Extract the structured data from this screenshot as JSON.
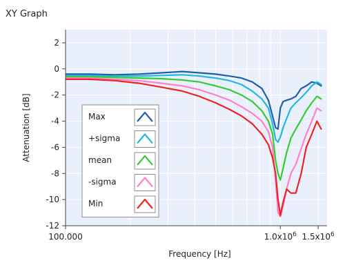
{
  "window": {
    "title": "XY Graph"
  },
  "colors": {
    "plot_background": "#eaf0fb",
    "grid": "#ffffff",
    "axis": "#444444",
    "legend_background": "#ffffff",
    "legend_border": "#8c8c8c"
  },
  "chart_data": {
    "type": "line",
    "title": "XY Graph",
    "xlabel": "Frequency [Hz]",
    "ylabel": "Attenuation [dB]",
    "x_scale": "log",
    "xlim": [
      100000,
      1650000
    ],
    "ylim": [
      -12,
      3
    ],
    "y_ticks": [
      2,
      0,
      -2,
      -4,
      -6,
      -8,
      -10,
      -12
    ],
    "y_tick_labels": [
      "2",
      "0",
      "-2",
      "-4",
      "-6",
      "-8",
      "-10",
      "-12"
    ],
    "x_ticks": [
      100000,
      1000000,
      1500000
    ],
    "x_tick_labels": [
      "100.000",
      "1.0x10^6",
      "1.5x10^6"
    ],
    "grid": true,
    "legend_position": "lower-left",
    "series": [
      {
        "name": "Max",
        "color": "#1f5ea8",
        "x": [
          100000,
          130000,
          170000,
          220000,
          280000,
          350000,
          420000,
          500000,
          580000,
          660000,
          740000,
          820000,
          880000,
          920000,
          950000,
          975000,
          1000000,
          1030000,
          1070000,
          1120000,
          1180000,
          1250000,
          1320000,
          1400000,
          1480000,
          1550000
        ],
        "y": [
          -0.4,
          -0.4,
          -0.45,
          -0.4,
          -0.3,
          -0.2,
          -0.3,
          -0.4,
          -0.55,
          -0.7,
          -1.0,
          -1.5,
          -2.4,
          -3.6,
          -4.5,
          -4.6,
          -3.0,
          -2.5,
          -2.4,
          -2.3,
          -2.1,
          -1.5,
          -1.3,
          -1.0,
          -1.1,
          -1.3
        ]
      },
      {
        "name": "+sigma",
        "color": "#1fb8e0",
        "x": [
          100000,
          130000,
          170000,
          220000,
          280000,
          350000,
          420000,
          500000,
          580000,
          660000,
          740000,
          820000,
          880000,
          920000,
          950000,
          975000,
          1000000,
          1030000,
          1070000,
          1120000,
          1180000,
          1250000,
          1320000,
          1400000,
          1480000,
          1550000
        ],
        "y": [
          -0.5,
          -0.5,
          -0.55,
          -0.55,
          -0.5,
          -0.45,
          -0.55,
          -0.7,
          -0.9,
          -1.2,
          -1.7,
          -2.3,
          -3.0,
          -4.2,
          -5.4,
          -5.6,
          -5.2,
          -4.5,
          -3.8,
          -3.0,
          -2.6,
          -2.2,
          -1.8,
          -1.3,
          -1.0,
          -1.2
        ]
      },
      {
        "name": "mean",
        "color": "#33cc33",
        "x": [
          100000,
          130000,
          170000,
          220000,
          280000,
          350000,
          420000,
          500000,
          580000,
          660000,
          740000,
          820000,
          880000,
          920000,
          950000,
          975000,
          1000000,
          1030000,
          1070000,
          1120000,
          1180000,
          1250000,
          1320000,
          1400000,
          1480000,
          1550000
        ],
        "y": [
          -0.6,
          -0.6,
          -0.65,
          -0.7,
          -0.75,
          -0.85,
          -1.0,
          -1.3,
          -1.6,
          -2.0,
          -2.5,
          -3.2,
          -4.0,
          -5.0,
          -7.0,
          -8.0,
          -8.5,
          -7.6,
          -6.4,
          -5.3,
          -4.6,
          -3.9,
          -3.2,
          -2.6,
          -2.1,
          -2.3
        ]
      },
      {
        "name": "-sigma",
        "color": "#ff80c8",
        "x": [
          100000,
          130000,
          170000,
          220000,
          280000,
          350000,
          420000,
          500000,
          580000,
          660000,
          740000,
          820000,
          880000,
          920000,
          950000,
          975000,
          1000000,
          1030000,
          1070000,
          1120000,
          1180000,
          1250000,
          1320000,
          1400000,
          1480000,
          1550000
        ],
        "y": [
          -0.7,
          -0.7,
          -0.8,
          -0.9,
          -1.1,
          -1.3,
          -1.6,
          -2.0,
          -2.4,
          -2.9,
          -3.4,
          -4.0,
          -4.8,
          -6.0,
          -8.5,
          -11.0,
          -11.3,
          -10.5,
          -9.2,
          -8.0,
          -7.3,
          -6.1,
          -5.0,
          -4.0,
          -3.0,
          -3.2
        ]
      },
      {
        "name": "Min",
        "color": "#ee2222",
        "x": [
          100000,
          130000,
          170000,
          220000,
          280000,
          350000,
          420000,
          500000,
          580000,
          660000,
          740000,
          820000,
          880000,
          920000,
          950000,
          975000,
          1000000,
          1030000,
          1070000,
          1120000,
          1180000,
          1250000,
          1320000,
          1400000,
          1480000,
          1550000
        ],
        "y": [
          -0.8,
          -0.8,
          -0.9,
          -1.1,
          -1.4,
          -1.7,
          -2.1,
          -2.6,
          -3.1,
          -3.6,
          -4.2,
          -5.0,
          -5.8,
          -6.8,
          -8.0,
          -10.0,
          -11.2,
          -10.2,
          -9.2,
          -9.5,
          -9.5,
          -8.0,
          -6.0,
          -5.0,
          -4.0,
          -4.6
        ]
      }
    ]
  }
}
